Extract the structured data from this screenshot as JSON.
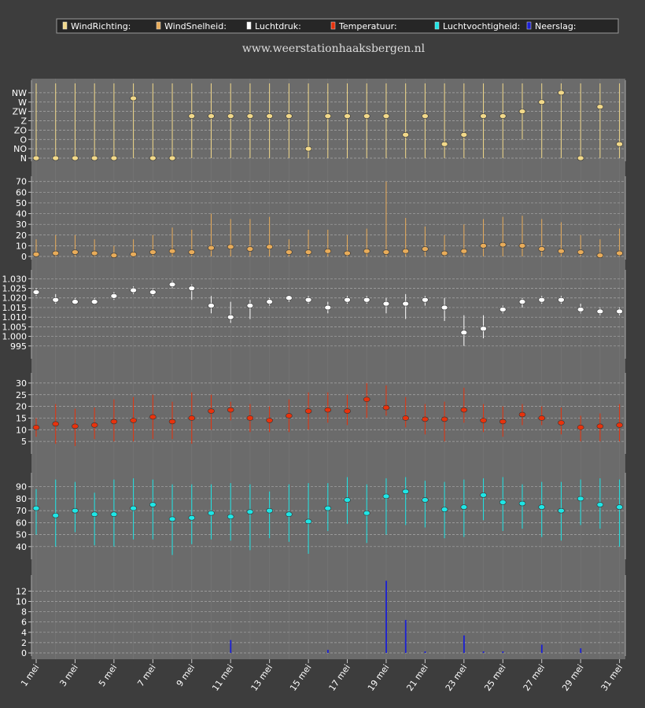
{
  "site": "www.weerstationhaaksbergen.nl",
  "colors": {
    "bg": "#3d3d3d",
    "plot": "#6b6b6b",
    "grid": "#a9a9a9"
  },
  "chart_data": [
    {
      "type": "scatter",
      "name": "WindRichting:",
      "color": "#f2d98a",
      "ylabels": [
        "N",
        "NO",
        "O",
        "ZO",
        "Z",
        "ZW",
        "W",
        "NW"
      ],
      "ylim": [
        0,
        8
      ],
      "values": [
        0,
        0,
        0,
        0,
        0,
        6.4,
        0,
        0,
        4.5,
        4.5,
        4.5,
        4.5,
        4.5,
        4.5,
        1,
        4.5,
        4.5,
        4.5,
        4.5,
        2.5,
        4.5,
        1.5,
        2.5,
        4.5,
        4.5,
        5,
        6,
        7,
        0,
        5.5,
        1.5
      ],
      "max": [
        8,
        8,
        8,
        8,
        8,
        8,
        8,
        8,
        8,
        8,
        8,
        8,
        8,
        8,
        8,
        8,
        8,
        8,
        8,
        8,
        8,
        8,
        8,
        8,
        8,
        8,
        8,
        8,
        8,
        8,
        8
      ],
      "min": [
        0,
        0,
        0,
        0,
        0,
        0,
        0,
        0,
        0,
        0,
        0,
        0,
        0,
        0,
        0,
        0,
        0,
        0,
        0,
        0,
        0,
        0,
        0,
        0,
        0,
        2,
        0,
        0,
        0,
        0,
        0
      ]
    },
    {
      "type": "scatter",
      "name": "WindSnelheid:",
      "color": "#e8ac5a",
      "yticks": [
        0,
        10,
        20,
        30,
        40,
        50,
        60,
        70
      ],
      "ylim": [
        0,
        72
      ],
      "values": [
        2,
        3,
        4,
        3,
        1,
        2,
        4,
        5,
        4,
        8,
        9,
        7,
        9,
        4,
        4,
        5,
        3,
        5,
        4,
        5,
        7,
        3,
        5,
        10,
        11,
        10,
        7,
        5,
        4,
        1,
        3
      ],
      "max": [
        16,
        20,
        20,
        16,
        10,
        16,
        20,
        27,
        25,
        40,
        35,
        35,
        37,
        16,
        25,
        25,
        20,
        26,
        70,
        36,
        28,
        20,
        30,
        35,
        37,
        38,
        35,
        32,
        20,
        16,
        26
      ],
      "min": [
        0,
        0,
        0,
        0,
        0,
        0,
        0,
        0,
        0,
        0,
        0,
        0,
        0,
        0,
        0,
        0,
        0,
        0,
        0,
        0,
        0,
        0,
        0,
        0,
        0,
        0,
        0,
        0,
        0,
        0,
        0
      ]
    },
    {
      "type": "scatter",
      "name": "Luchtdruk:",
      "color": "#ffffff",
      "yticks": [
        995,
        1000,
        1005,
        1010,
        1015,
        1020,
        1025,
        1030
      ],
      "yticklabels": [
        "995",
        "1.000",
        "1.005",
        "1.010",
        "1.015",
        "1.020",
        "1.025",
        "1.030"
      ],
      "ylim": [
        990,
        1033
      ],
      "values": [
        1023,
        1019,
        1018,
        1018,
        1021,
        1024,
        1023,
        1027,
        1025,
        1016,
        1010,
        1016,
        1018,
        1020,
        1019,
        1015,
        1019,
        1019,
        1017,
        1017,
        1019,
        1015,
        1002,
        1004,
        1014,
        1018,
        1019,
        1019,
        1014,
        1013,
        1013
      ],
      "max": [
        1025,
        1022,
        1020,
        1020,
        1023,
        1026,
        1025,
        1029,
        1027,
        1021,
        1018,
        1019,
        1020,
        1021,
        1021,
        1018,
        1021,
        1021,
        1020,
        1022,
        1021,
        1020,
        1011,
        1011,
        1016,
        1020,
        1021,
        1021,
        1017,
        1015,
        1015
      ],
      "min": [
        1021,
        1017,
        1017,
        1017,
        1019,
        1022,
        1021,
        1025,
        1019,
        1012,
        1007,
        1009,
        1016,
        1018,
        1017,
        1012,
        1017,
        1017,
        1012,
        1009,
        1016,
        1008,
        995,
        999,
        1012,
        1015,
        1017,
        1017,
        1012,
        1011,
        1011
      ]
    },
    {
      "type": "scatter",
      "name": "Temperatuur:",
      "color": "#e8320c",
      "yticks": [
        5,
        10,
        15,
        20,
        25,
        30
      ],
      "ylim": [
        1,
        33
      ],
      "values": [
        11,
        12.5,
        11.5,
        12,
        13.5,
        14,
        15.5,
        13.5,
        15,
        18,
        18.5,
        15,
        14,
        16,
        18,
        18.5,
        18,
        23,
        19.5,
        15,
        14.5,
        14.5,
        18.5,
        14,
        13.5,
        16.5,
        15,
        13,
        11,
        11.5,
        12
      ],
      "max": [
        15,
        21,
        19,
        19.5,
        23,
        24,
        25,
        22,
        26,
        25,
        22,
        21,
        20,
        23,
        26,
        26,
        25,
        30,
        29,
        24,
        21,
        22,
        28,
        21,
        20,
        21,
        20,
        19.5,
        16,
        17,
        21
      ],
      "min": [
        7,
        4,
        3,
        6,
        5,
        5,
        6,
        6,
        4,
        10,
        14,
        9,
        9,
        9,
        10,
        13,
        12,
        15,
        16,
        11,
        8,
        5,
        13,
        9,
        7,
        12,
        12,
        8,
        5,
        5,
        5
      ]
    },
    {
      "type": "scatter",
      "name": "Luchtvochtigheid:",
      "color": "#1ee6e6",
      "yticks": [
        40,
        50,
        60,
        70,
        80,
        90
      ],
      "ylim": [
        32,
        99
      ],
      "values": [
        72,
        66,
        70,
        67,
        67,
        72,
        75,
        63,
        64,
        68,
        65,
        69,
        70,
        67,
        61,
        72,
        79,
        68,
        82,
        86,
        79,
        71,
        73,
        83,
        77,
        76,
        73,
        70,
        80,
        75,
        73
      ],
      "max": [
        88,
        96,
        94,
        85,
        96,
        97,
        96,
        92,
        92,
        92,
        93,
        92,
        86,
        92,
        93,
        93,
        98,
        92,
        97,
        98,
        95,
        94,
        96,
        97,
        98,
        92,
        94,
        94,
        96,
        97,
        96
      ],
      "min": [
        50,
        40,
        52,
        41,
        40,
        46,
        46,
        33,
        42,
        46,
        45,
        37,
        47,
        44,
        34,
        53,
        59,
        43,
        50,
        58,
        56,
        47,
        48,
        62,
        53,
        55,
        48,
        45,
        58,
        55,
        40
      ]
    },
    {
      "type": "bar",
      "name": "Neerslag:",
      "color": "#1c20d4",
      "yticks": [
        0,
        2,
        4,
        6,
        8,
        10,
        12
      ],
      "ylim": [
        0,
        14.5
      ],
      "values": [
        0,
        0,
        0,
        0,
        0,
        0,
        0,
        0,
        0,
        0,
        2.5,
        0,
        0,
        0,
        0,
        0.6,
        0,
        0,
        14,
        6.4,
        0.3,
        0,
        3.4,
        0.3,
        0.3,
        0,
        1.6,
        0,
        0.9,
        0,
        0
      ]
    }
  ],
  "x_labels": [
    "1 mei",
    "3 mei",
    "5 mei",
    "7 mei",
    "9 mei",
    "11 mei",
    "13 mei",
    "15 mei",
    "17 mei",
    "19 mei",
    "21 mei",
    "23 mei",
    "25 mei",
    "27 mei",
    "29 mei",
    "31 mei"
  ]
}
